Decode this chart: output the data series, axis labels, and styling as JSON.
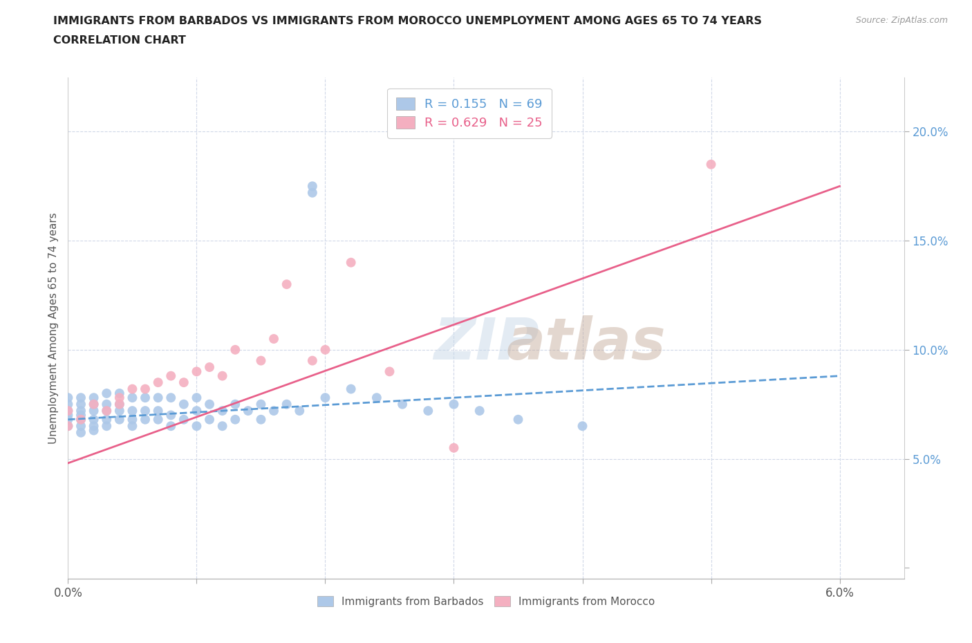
{
  "title_line1": "IMMIGRANTS FROM BARBADOS VS IMMIGRANTS FROM MOROCCO UNEMPLOYMENT AMONG AGES 65 TO 74 YEARS",
  "title_line2": "CORRELATION CHART",
  "source_text": "Source: ZipAtlas.com",
  "ylabel": "Unemployment Among Ages 65 to 74 years",
  "xlim": [
    0.0,
    0.065
  ],
  "ylim": [
    -0.005,
    0.225
  ],
  "xticks": [
    0.0,
    0.01,
    0.02,
    0.03,
    0.04,
    0.05,
    0.06
  ],
  "xticklabels": [
    "0.0%",
    "",
    "",
    "",
    "",
    "",
    "6.0%"
  ],
  "yticks": [
    0.0,
    0.05,
    0.1,
    0.15,
    0.2
  ],
  "yticklabels": [
    "",
    "5.0%",
    "10.0%",
    "15.0%",
    "20.0%"
  ],
  "r_barbados": 0.155,
  "n_barbados": 69,
  "r_morocco": 0.629,
  "n_morocco": 25,
  "barbados_color": "#adc8e8",
  "morocco_color": "#f4afc0",
  "trend_barbados_color": "#5b9bd5",
  "trend_morocco_color": "#e8608a",
  "background_color": "#ffffff",
  "grid_color": "#d0d8e8",
  "barbados_x": [
    0.0,
    0.0,
    0.0,
    0.0,
    0.0,
    0.0,
    0.001,
    0.001,
    0.001,
    0.001,
    0.001,
    0.001,
    0.001,
    0.002,
    0.002,
    0.002,
    0.002,
    0.002,
    0.002,
    0.003,
    0.003,
    0.003,
    0.003,
    0.003,
    0.004,
    0.004,
    0.004,
    0.004,
    0.005,
    0.005,
    0.005,
    0.005,
    0.006,
    0.006,
    0.006,
    0.007,
    0.007,
    0.007,
    0.008,
    0.008,
    0.008,
    0.009,
    0.009,
    0.01,
    0.01,
    0.01,
    0.011,
    0.011,
    0.012,
    0.012,
    0.013,
    0.013,
    0.014,
    0.015,
    0.015,
    0.016,
    0.017,
    0.018,
    0.019,
    0.019,
    0.02,
    0.022,
    0.024,
    0.026,
    0.028,
    0.03,
    0.032,
    0.035,
    0.04
  ],
  "barbados_y": [
    0.065,
    0.068,
    0.07,
    0.072,
    0.075,
    0.078,
    0.062,
    0.065,
    0.068,
    0.07,
    0.072,
    0.075,
    0.078,
    0.063,
    0.065,
    0.068,
    0.072,
    0.075,
    0.078,
    0.065,
    0.068,
    0.072,
    0.075,
    0.08,
    0.068,
    0.072,
    0.075,
    0.08,
    0.065,
    0.068,
    0.072,
    0.078,
    0.068,
    0.072,
    0.078,
    0.068,
    0.072,
    0.078,
    0.065,
    0.07,
    0.078,
    0.068,
    0.075,
    0.065,
    0.072,
    0.078,
    0.068,
    0.075,
    0.065,
    0.072,
    0.068,
    0.075,
    0.072,
    0.068,
    0.075,
    0.072,
    0.075,
    0.072,
    0.172,
    0.175,
    0.078,
    0.082,
    0.078,
    0.075,
    0.072,
    0.075,
    0.072,
    0.068,
    0.065
  ],
  "morocco_x": [
    0.0,
    0.0,
    0.001,
    0.002,
    0.003,
    0.004,
    0.004,
    0.005,
    0.006,
    0.007,
    0.008,
    0.009,
    0.01,
    0.011,
    0.012,
    0.013,
    0.015,
    0.016,
    0.017,
    0.019,
    0.02,
    0.022,
    0.025,
    0.03,
    0.05
  ],
  "morocco_y": [
    0.065,
    0.072,
    0.068,
    0.075,
    0.072,
    0.075,
    0.078,
    0.082,
    0.082,
    0.085,
    0.088,
    0.085,
    0.09,
    0.092,
    0.088,
    0.1,
    0.095,
    0.105,
    0.13,
    0.095,
    0.1,
    0.14,
    0.09,
    0.055,
    0.185
  ],
  "trend_b_x0": 0.0,
  "trend_b_x1": 0.06,
  "trend_b_y0": 0.068,
  "trend_b_y1": 0.088,
  "trend_m_x0": 0.0,
  "trend_m_x1": 0.06,
  "trend_m_y0": 0.048,
  "trend_m_y1": 0.175
}
